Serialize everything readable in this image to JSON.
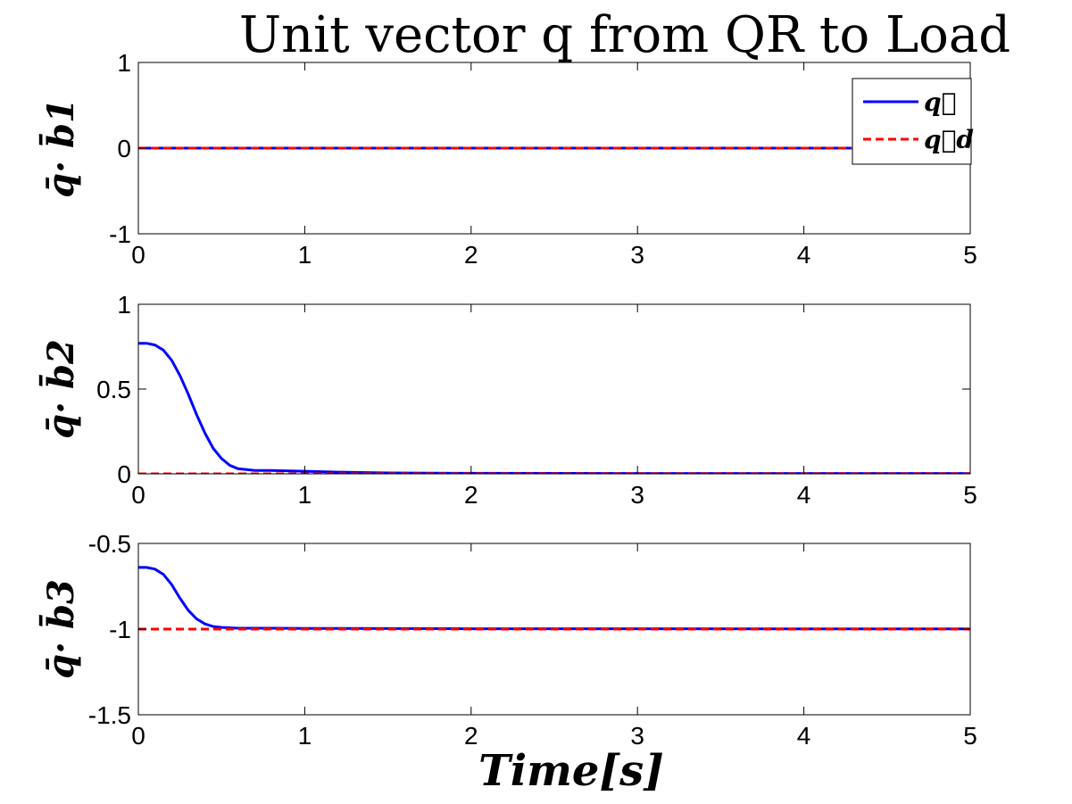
{
  "figure": {
    "title": "Unit vector q from QR to Load",
    "xlabel": "Time[s]"
  },
  "chart_data": [
    {
      "type": "line",
      "ylabel": "q̄· b̄1",
      "xlim": [
        0,
        5
      ],
      "ylim": [
        -1,
        1
      ],
      "xticks": [
        "0",
        "1",
        "2",
        "3",
        "4",
        "5"
      ],
      "yticks": [
        "-1",
        "0",
        "1"
      ],
      "legend": {
        "placement": "top-right",
        "entries": [
          "q⃗",
          "q⃗d"
        ]
      },
      "series": [
        {
          "name": "q⃗",
          "color": "#0000ff",
          "style": "solid",
          "x": [
            0,
            5
          ],
          "y": [
            0,
            0
          ]
        },
        {
          "name": "q⃗d",
          "color": "#ff0000",
          "style": "dashed",
          "x": [
            0,
            5
          ],
          "y": [
            0,
            0
          ]
        }
      ]
    },
    {
      "type": "line",
      "ylabel": "q̄· b̄2",
      "xlim": [
        0,
        5
      ],
      "ylim": [
        0,
        1
      ],
      "xticks": [
        "0",
        "1",
        "2",
        "3",
        "4",
        "5"
      ],
      "yticks": [
        "0",
        "0.5",
        "1"
      ],
      "series": [
        {
          "name": "q⃗",
          "color": "#0000ff",
          "style": "solid",
          "x": [
            0,
            0.05,
            0.1,
            0.15,
            0.2,
            0.25,
            0.3,
            0.35,
            0.4,
            0.45,
            0.5,
            0.55,
            0.6,
            0.7,
            0.8,
            1.0,
            1.2,
            1.5,
            2.0,
            3.0,
            5.0
          ],
          "y": [
            0.77,
            0.77,
            0.76,
            0.73,
            0.67,
            0.58,
            0.47,
            0.35,
            0.24,
            0.15,
            0.09,
            0.05,
            0.03,
            0.02,
            0.02,
            0.015,
            0.01,
            0.005,
            0.003,
            0.002,
            0.002
          ]
        },
        {
          "name": "q⃗d",
          "color": "#ff0000",
          "style": "dashed",
          "x": [
            0,
            5
          ],
          "y": [
            0,
            0
          ]
        }
      ]
    },
    {
      "type": "line",
      "ylabel": "q̄· b̄3",
      "xlim": [
        0,
        5
      ],
      "ylim": [
        -1.5,
        -0.5
      ],
      "xticks": [
        "0",
        "1",
        "2",
        "3",
        "4",
        "5"
      ],
      "yticks": [
        "-1.5",
        "-1",
        "-0.5"
      ],
      "series": [
        {
          "name": "q⃗",
          "color": "#0000ff",
          "style": "solid",
          "x": [
            0,
            0.05,
            0.1,
            0.15,
            0.2,
            0.25,
            0.3,
            0.35,
            0.4,
            0.45,
            0.5,
            0.6,
            0.8,
            1.0,
            1.5,
            2.0,
            5.0
          ],
          "y": [
            -0.64,
            -0.64,
            -0.65,
            -0.68,
            -0.74,
            -0.82,
            -0.89,
            -0.94,
            -0.97,
            -0.985,
            -0.99,
            -0.995,
            -0.995,
            -0.996,
            -0.997,
            -0.998,
            -0.999
          ]
        },
        {
          "name": "q⃗d",
          "color": "#ff0000",
          "style": "dashed",
          "x": [
            0,
            5
          ],
          "y": [
            -1,
            -1
          ]
        }
      ]
    }
  ]
}
